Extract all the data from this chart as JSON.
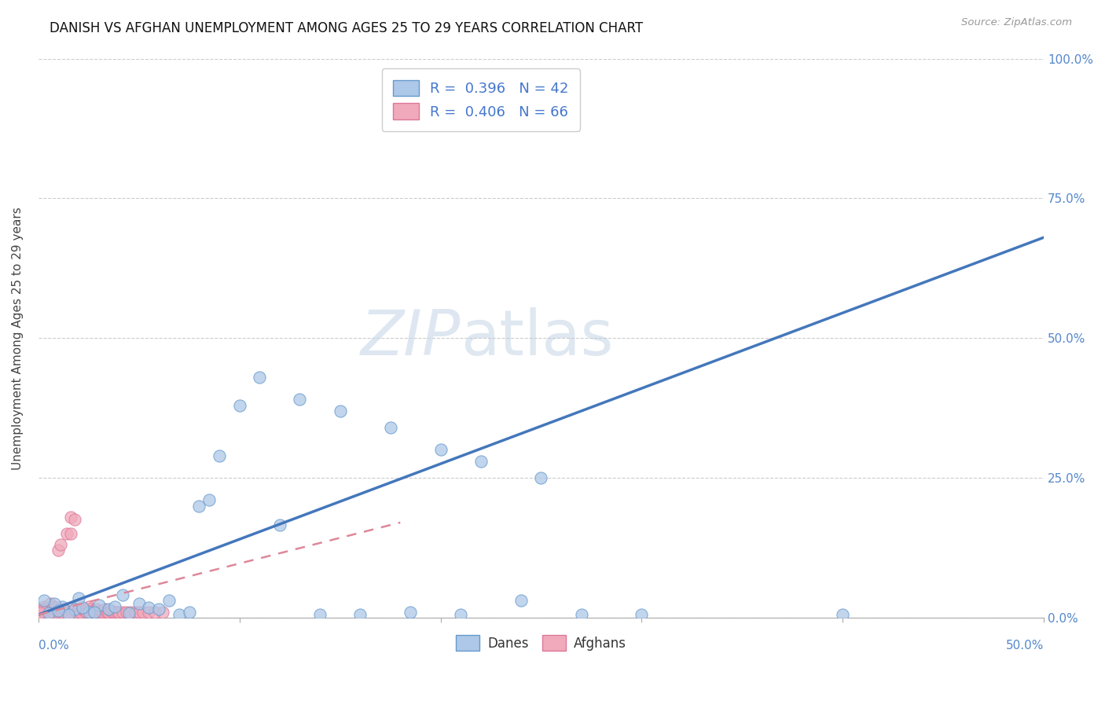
{
  "title": "DANISH VS AFGHAN UNEMPLOYMENT AMONG AGES 25 TO 29 YEARS CORRELATION CHART",
  "source": "Source: ZipAtlas.com",
  "ylabel": "Unemployment Among Ages 25 to 29 years",
  "danes_color": "#adc8e8",
  "afghans_color": "#f0aabb",
  "danes_edge_color": "#6699cc",
  "afghans_edge_color": "#dd7799",
  "danes_line_color": "#4477bb",
  "afghans_line_color": "#dd8899",
  "watermark_zip": "ZIP",
  "watermark_atlas": "atlas",
  "xlim": [
    0.0,
    0.5
  ],
  "ylim": [
    0.0,
    1.0
  ],
  "x_ticks": [
    0.0,
    0.1,
    0.2,
    0.3,
    0.4,
    0.5
  ],
  "y_ticks": [
    0.0,
    0.25,
    0.5,
    0.75,
    1.0
  ],
  "y_tick_labels_right": [
    "0.0%",
    "25.0%",
    "50.0%",
    "75.0%",
    "100.0%"
  ],
  "danes_trend_x": [
    0.0,
    0.5
  ],
  "danes_trend_y": [
    0.005,
    0.68
  ],
  "afghans_trend_x": [
    0.0,
    0.18
  ],
  "afghans_trend_y": [
    0.005,
    0.17
  ],
  "danes_x": [
    0.012,
    0.018,
    0.025,
    0.008,
    0.005,
    0.003,
    0.022,
    0.015,
    0.01,
    0.03,
    0.035,
    0.02,
    0.045,
    0.038,
    0.028,
    0.05,
    0.055,
    0.042,
    0.065,
    0.06,
    0.08,
    0.09,
    0.1,
    0.11,
    0.13,
    0.15,
    0.175,
    0.2,
    0.22,
    0.25,
    0.07,
    0.075,
    0.085,
    0.12,
    0.14,
    0.16,
    0.185,
    0.21,
    0.24,
    0.27,
    0.3,
    0.4
  ],
  "danes_y": [
    0.02,
    0.015,
    0.01,
    0.025,
    0.008,
    0.03,
    0.018,
    0.005,
    0.012,
    0.022,
    0.015,
    0.035,
    0.008,
    0.02,
    0.01,
    0.025,
    0.018,
    0.04,
    0.03,
    0.015,
    0.2,
    0.29,
    0.38,
    0.43,
    0.39,
    0.37,
    0.34,
    0.3,
    0.28,
    0.25,
    0.005,
    0.01,
    0.21,
    0.165,
    0.005,
    0.005,
    0.01,
    0.005,
    0.03,
    0.005,
    0.005,
    0.005
  ],
  "afghans_x": [
    0.002,
    0.003,
    0.004,
    0.005,
    0.003,
    0.004,
    0.005,
    0.006,
    0.006,
    0.007,
    0.007,
    0.008,
    0.008,
    0.009,
    0.01,
    0.01,
    0.011,
    0.012,
    0.012,
    0.013,
    0.014,
    0.015,
    0.016,
    0.016,
    0.017,
    0.018,
    0.018,
    0.019,
    0.02,
    0.02,
    0.021,
    0.022,
    0.023,
    0.024,
    0.025,
    0.026,
    0.026,
    0.027,
    0.028,
    0.029,
    0.03,
    0.031,
    0.032,
    0.033,
    0.034,
    0.035,
    0.036,
    0.037,
    0.038,
    0.039,
    0.04,
    0.042,
    0.044,
    0.046,
    0.048,
    0.05,
    0.052,
    0.055,
    0.058,
    0.062,
    0.001,
    0.002,
    0.001,
    0.003,
    0.002,
    0.001
  ],
  "afghans_y": [
    0.01,
    0.015,
    0.012,
    0.008,
    0.02,
    0.018,
    0.015,
    0.012,
    0.025,
    0.01,
    0.02,
    0.015,
    0.008,
    0.018,
    0.12,
    0.01,
    0.13,
    0.015,
    0.01,
    0.015,
    0.15,
    0.01,
    0.15,
    0.18,
    0.01,
    0.015,
    0.175,
    0.01,
    0.012,
    0.015,
    0.01,
    0.015,
    0.012,
    0.01,
    0.02,
    0.01,
    0.015,
    0.012,
    0.01,
    0.015,
    0.01,
    0.012,
    0.01,
    0.015,
    0.01,
    0.01,
    0.012,
    0.01,
    0.01,
    0.01,
    0.01,
    0.01,
    0.01,
    0.01,
    0.01,
    0.01,
    0.01,
    0.01,
    0.01,
    0.01,
    0.005,
    0.008,
    0.01,
    0.01,
    0.012,
    0.008
  ]
}
